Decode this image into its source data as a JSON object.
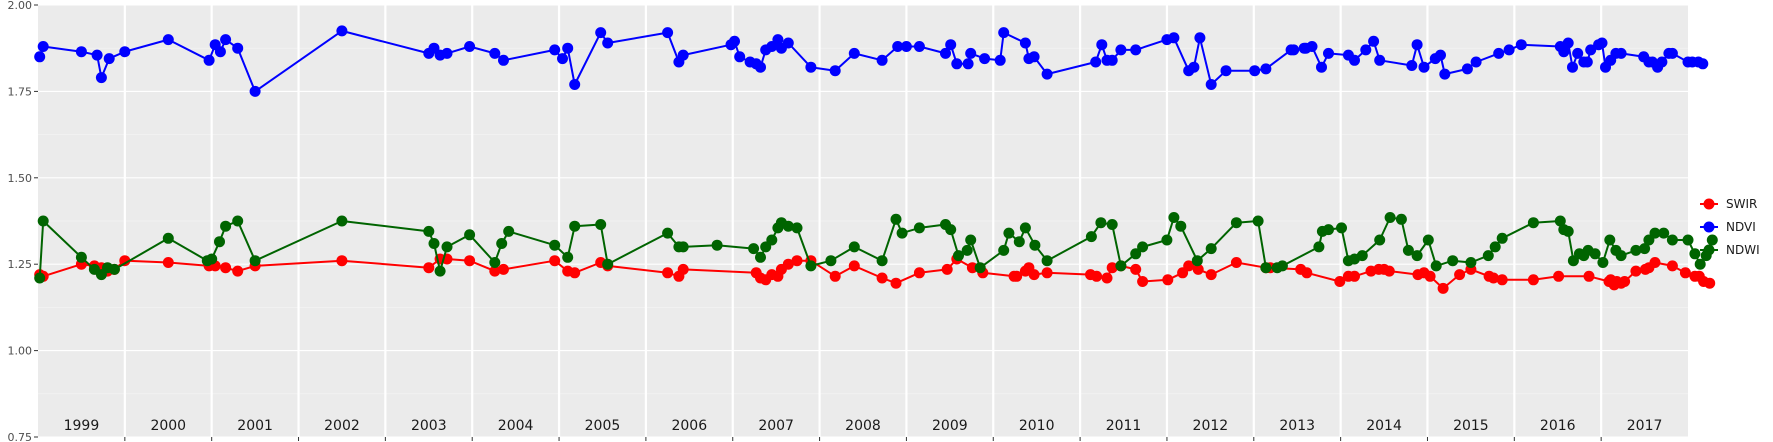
{
  "chart_data": {
    "type": "line",
    "title": "",
    "xlabel": "",
    "ylabel": "",
    "ylim": [
      0.75,
      2.0
    ],
    "yticks": [
      "0.75",
      "1.00",
      "1.25",
      "1.50",
      "1.75",
      "2.00"
    ],
    "xlim": [
      1999.0,
      2018.0
    ],
    "x_panel_labels": [
      "1999",
      "2000",
      "2001",
      "2002",
      "2003",
      "2004",
      "2005",
      "2006",
      "2007",
      "2008",
      "2009",
      "2010",
      "2011",
      "2012",
      "2013",
      "2014",
      "2015",
      "2016",
      "2017"
    ],
    "grid": true,
    "legend_position": "right",
    "series": [
      {
        "name": "SWIR",
        "color": "#ff0000",
        "x": [
          1999.02,
          1999.06,
          1999.5,
          1999.65,
          1999.68,
          1999.73,
          1999.8,
          1999.88,
          2000.0,
          2000.5,
          2000.97,
          2001.04,
          2001.16,
          2001.3,
          2001.5,
          2002.5,
          2003.5,
          2003.63,
          2003.71,
          2003.97,
          2004.26,
          2004.36,
          2004.95,
          2005.1,
          2005.18,
          2005.48,
          2005.56,
          2006.25,
          2006.38,
          2006.43,
          2007.27,
          2007.32,
          2007.38,
          2007.45,
          2007.52,
          2007.56,
          2007.64,
          2007.74,
          2007.9,
          2008.18,
          2008.4,
          2008.72,
          2008.88,
          2009.15,
          2009.47,
          2009.58,
          2009.76,
          2009.88,
          2010.24,
          2010.27,
          2010.37,
          2010.41,
          2010.47,
          2010.62,
          2011.12,
          2011.19,
          2011.31,
          2011.37,
          2011.47,
          2011.64,
          2011.72,
          2012.01,
          2012.18,
          2012.25,
          2012.36,
          2012.51,
          2012.8,
          2013.14,
          2013.19,
          2013.54,
          2013.61,
          2013.99,
          2014.09,
          2014.16,
          2014.35,
          2014.44,
          2014.5,
          2014.56,
          2014.89,
          2014.96,
          2015.03,
          2015.18,
          2015.37,
          2015.5,
          2015.71,
          2015.76,
          2015.86,
          2016.22,
          2016.51,
          2016.86,
          2017.09,
          2017.11,
          2017.15,
          2017.18,
          2017.23,
          2017.27,
          2017.4,
          2017.51,
          2017.55,
          2017.62,
          2017.82,
          2017.97,
          2018.08,
          2018.13,
          2018.18,
          2018.25
        ],
        "values": [
          1.22,
          1.215,
          1.25,
          1.245,
          1.235,
          1.24,
          1.23,
          1.235,
          1.26,
          1.255,
          1.245,
          1.245,
          1.24,
          1.23,
          1.245,
          1.26,
          1.24,
          1.265,
          1.265,
          1.26,
          1.23,
          1.235,
          1.26,
          1.23,
          1.225,
          1.255,
          1.245,
          1.225,
          1.215,
          1.235,
          1.225,
          1.21,
          1.205,
          1.22,
          1.215,
          1.235,
          1.25,
          1.26,
          1.26,
          1.215,
          1.245,
          1.21,
          1.195,
          1.225,
          1.235,
          1.265,
          1.24,
          1.225,
          1.215,
          1.215,
          1.23,
          1.24,
          1.22,
          1.225,
          1.22,
          1.215,
          1.21,
          1.24,
          1.245,
          1.235,
          1.2,
          1.205,
          1.225,
          1.245,
          1.235,
          1.22,
          1.255,
          1.24,
          1.24,
          1.235,
          1.225,
          1.2,
          1.215,
          1.215,
          1.23,
          1.235,
          1.235,
          1.23,
          1.22,
          1.225,
          1.215,
          1.18,
          1.22,
          1.235,
          1.215,
          1.21,
          1.205,
          1.205,
          1.215,
          1.215,
          1.2,
          1.205,
          1.19,
          1.2,
          1.195,
          1.2,
          1.23,
          1.235,
          1.24,
          1.255,
          1.245,
          1.225,
          1.215,
          1.215,
          1.2,
          1.195
        ]
      },
      {
        "name": "NDVI",
        "color": "#0000ff",
        "x": [
          1999.02,
          1999.06,
          1999.5,
          1999.68,
          1999.73,
          1999.82,
          2000.0,
          2000.5,
          2000.97,
          2001.04,
          2001.1,
          2001.16,
          2001.3,
          2001.5,
          2002.5,
          2003.5,
          2003.56,
          2003.63,
          2003.71,
          2003.97,
          2004.26,
          2004.36,
          2004.95,
          2005.04,
          2005.1,
          2005.18,
          2005.48,
          2005.56,
          2006.25,
          2006.38,
          2006.43,
          2006.98,
          2007.02,
          2007.08,
          2007.2,
          2007.27,
          2007.32,
          2007.38,
          2007.45,
          2007.52,
          2007.56,
          2007.64,
          2007.9,
          2008.18,
          2008.4,
          2008.72,
          2008.9,
          2009.0,
          2009.15,
          2009.45,
          2009.51,
          2009.58,
          2009.71,
          2009.74,
          2009.9,
          2010.08,
          2010.12,
          2010.37,
          2010.41,
          2010.47,
          2010.62,
          2011.18,
          2011.25,
          2011.31,
          2011.37,
          2011.47,
          2011.64,
          2012.0,
          2012.08,
          2012.25,
          2012.31,
          2012.38,
          2012.51,
          2012.68,
          2013.01,
          2013.14,
          2013.43,
          2013.46,
          2013.58,
          2013.6,
          2013.67,
          2013.78,
          2013.86,
          2014.09,
          2014.16,
          2014.29,
          2014.38,
          2014.45,
          2014.82,
          2014.88,
          2014.96,
          2015.09,
          2015.15,
          2015.2,
          2015.46,
          2015.56,
          2015.82,
          2015.94,
          2016.08,
          2016.53,
          2016.57,
          2016.62,
          2016.67,
          2016.73,
          2016.8,
          2016.84,
          2016.88,
          2016.97,
          2017.01,
          2017.05,
          2017.11,
          2017.17,
          2017.23,
          2017.49,
          2017.55,
          2017.59,
          2017.65,
          2017.7,
          2017.78,
          2017.82,
          2018.0,
          2018.05,
          2018.12,
          2018.17
        ],
        "values": [
          1.85,
          1.88,
          1.865,
          1.855,
          1.79,
          1.845,
          1.865,
          1.9,
          1.84,
          1.885,
          1.865,
          1.9,
          1.875,
          1.75,
          1.925,
          1.86,
          1.875,
          1.855,
          1.86,
          1.88,
          1.86,
          1.84,
          1.87,
          1.845,
          1.875,
          1.77,
          1.92,
          1.89,
          1.92,
          1.835,
          1.855,
          1.885,
          1.895,
          1.85,
          1.835,
          1.83,
          1.82,
          1.87,
          1.88,
          1.9,
          1.875,
          1.89,
          1.82,
          1.81,
          1.86,
          1.84,
          1.88,
          1.88,
          1.88,
          1.86,
          1.885,
          1.83,
          1.83,
          1.86,
          1.845,
          1.84,
          1.92,
          1.89,
          1.845,
          1.85,
          1.8,
          1.835,
          1.885,
          1.84,
          1.84,
          1.87,
          1.87,
          1.9,
          1.905,
          1.81,
          1.82,
          1.905,
          1.77,
          1.81,
          1.81,
          1.815,
          1.87,
          1.87,
          1.875,
          1.875,
          1.88,
          1.82,
          1.86,
          1.855,
          1.84,
          1.87,
          1.895,
          1.84,
          1.825,
          1.885,
          1.82,
          1.845,
          1.855,
          1.8,
          1.815,
          1.835,
          1.86,
          1.87,
          1.885,
          1.88,
          1.865,
          1.89,
          1.82,
          1.86,
          1.835,
          1.835,
          1.87,
          1.885,
          1.89,
          1.82,
          1.84,
          1.86,
          1.86,
          1.85,
          1.835,
          1.835,
          1.82,
          1.835,
          1.86,
          1.86,
          1.835,
          1.835,
          1.835,
          1.83
        ]
      },
      {
        "name": "NDWI",
        "color": "#006400",
        "x": [
          1999.02,
          1999.06,
          1999.5,
          1999.65,
          1999.73,
          1999.8,
          1999.88,
          2000.5,
          2000.95,
          2001.0,
          2001.09,
          2001.16,
          2001.3,
          2001.5,
          2002.5,
          2003.5,
          2003.56,
          2003.63,
          2003.71,
          2003.97,
          2004.26,
          2004.34,
          2004.42,
          2004.95,
          2005.1,
          2005.18,
          2005.48,
          2005.56,
          2006.25,
          2006.38,
          2006.43,
          2006.82,
          2007.24,
          2007.32,
          2007.38,
          2007.45,
          2007.52,
          2007.56,
          2007.64,
          2007.74,
          2007.9,
          2008.13,
          2008.4,
          2008.72,
          2008.88,
          2008.95,
          2009.15,
          2009.45,
          2009.51,
          2009.6,
          2009.7,
          2009.74,
          2009.85,
          2010.12,
          2010.18,
          2010.3,
          2010.37,
          2010.48,
          2010.62,
          2011.13,
          2011.24,
          2011.37,
          2011.47,
          2011.64,
          2011.72,
          2012.0,
          2012.08,
          2012.16,
          2012.35,
          2012.51,
          2012.8,
          2013.05,
          2013.14,
          2013.27,
          2013.33,
          2013.75,
          2013.79,
          2013.86,
          2014.01,
          2014.09,
          2014.16,
          2014.25,
          2014.45,
          2014.57,
          2014.7,
          2014.78,
          2014.88,
          2015.01,
          2015.1,
          2015.29,
          2015.5,
          2015.7,
          2015.78,
          2015.86,
          2016.22,
          2016.53,
          2016.57,
          2016.62,
          2016.68,
          2016.75,
          2016.8,
          2016.85,
          2016.93,
          2017.02,
          2017.1,
          2017.17,
          2017.23,
          2017.4,
          2017.5,
          2017.55,
          2017.62,
          2017.72,
          2017.82,
          2018.0,
          2018.08,
          2018.14,
          2018.21,
          2018.28
        ],
        "values": [
          1.21,
          1.375,
          1.27,
          1.235,
          1.22,
          1.24,
          1.235,
          1.325,
          1.26,
          1.265,
          1.315,
          1.36,
          1.375,
          1.26,
          1.375,
          1.345,
          1.31,
          1.23,
          1.3,
          1.335,
          1.255,
          1.31,
          1.345,
          1.305,
          1.27,
          1.36,
          1.365,
          1.25,
          1.34,
          1.3,
          1.3,
          1.305,
          1.295,
          1.27,
          1.3,
          1.32,
          1.355,
          1.37,
          1.36,
          1.355,
          1.245,
          1.26,
          1.3,
          1.26,
          1.38,
          1.34,
          1.355,
          1.365,
          1.35,
          1.275,
          1.29,
          1.32,
          1.24,
          1.29,
          1.34,
          1.315,
          1.355,
          1.305,
          1.26,
          1.33,
          1.37,
          1.365,
          1.245,
          1.28,
          1.3,
          1.32,
          1.385,
          1.36,
          1.26,
          1.295,
          1.37,
          1.375,
          1.24,
          1.24,
          1.245,
          1.3,
          1.345,
          1.35,
          1.355,
          1.26,
          1.265,
          1.275,
          1.32,
          1.385,
          1.38,
          1.29,
          1.275,
          1.32,
          1.245,
          1.26,
          1.255,
          1.275,
          1.3,
          1.325,
          1.37,
          1.375,
          1.35,
          1.345,
          1.26,
          1.28,
          1.275,
          1.29,
          1.28,
          1.255,
          1.32,
          1.29,
          1.275,
          1.29,
          1.295,
          1.32,
          1.34,
          1.34,
          1.32,
          1.32,
          1.28,
          1.25,
          1.275,
          1.32
        ]
      }
    ]
  }
}
